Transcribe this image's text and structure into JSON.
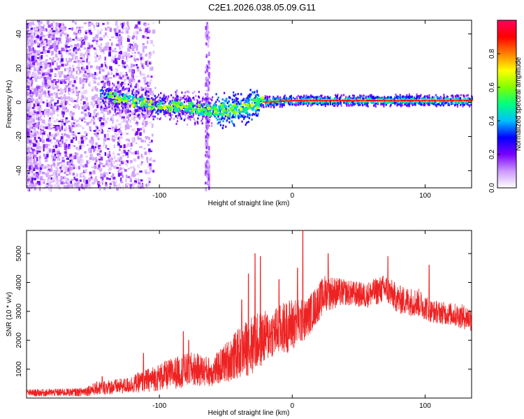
{
  "title": "C2E1.2026.038.05.09.G11",
  "chart_data": [
    {
      "type": "heatmap",
      "name": "spectrogram",
      "xlabel": "Height of straight line (km)",
      "ylabel": "Frequency (Hz)",
      "xlim": [
        -200,
        135
      ],
      "ylim": [
        -50,
        48
      ],
      "x_ticks": [
        -100,
        0,
        100
      ],
      "x_tick_labels": [
        "-100",
        "0",
        "100"
      ],
      "y_ticks": [
        -40,
        -20,
        0,
        20,
        40
      ],
      "y_tick_labels": [
        "-40",
        "-20",
        "0",
        "20",
        "40"
      ],
      "colorbar": {
        "label": "Normalized spectral amplitude",
        "range": [
          0,
          1
        ],
        "ticks": [
          0,
          0.2,
          0.4,
          0.6,
          0.8
        ],
        "tick_labels": [
          "0.0",
          "0.2",
          "0.4",
          "0.6",
          "0.8"
        ],
        "colormap": [
          "#ffffff",
          "#cc99ff",
          "#7a00ff",
          "#0000ff",
          "#00c0ff",
          "#00ff80",
          "#80ff00",
          "#ffff00",
          "#ff8000",
          "#ff0000",
          "#ff0060"
        ]
      },
      "signal_track": [
        {
          "x": -145,
          "freq": 5
        },
        {
          "x": -120,
          "freq": 1
        },
        {
          "x": -100,
          "freq": -2
        },
        {
          "x": -80,
          "freq": -3
        },
        {
          "x": -60,
          "freq": -5
        },
        {
          "x": -40,
          "freq": -4
        },
        {
          "x": -25,
          "freq": 0
        },
        {
          "x": 0,
          "freq": 1
        },
        {
          "x": 50,
          "freq": 1
        },
        {
          "x": 90,
          "freq": 1
        },
        {
          "x": 135,
          "freq": 1
        }
      ]
    },
    {
      "type": "line",
      "name": "snr",
      "xlabel": "Height of straight line (km)",
      "ylabel": "SNR (10 * v/v)",
      "xlim": [
        -200,
        135
      ],
      "ylim": [
        0,
        5800
      ],
      "x_ticks": [
        -100,
        0,
        100
      ],
      "x_tick_labels": [
        "-100",
        "0",
        "100"
      ],
      "y_ticks": [
        1000,
        2000,
        3000,
        4000,
        5000
      ],
      "y_tick_labels": [
        "1000",
        "2000",
        "3000",
        "4000",
        "5000"
      ],
      "color": "#ee2222",
      "envelope": [
        {
          "x": -200,
          "low": 50,
          "high": 300
        },
        {
          "x": -160,
          "low": 60,
          "high": 350
        },
        {
          "x": -145,
          "low": 100,
          "high": 600
        },
        {
          "x": -125,
          "low": 150,
          "high": 700
        },
        {
          "x": -110,
          "low": 200,
          "high": 1000
        },
        {
          "x": -90,
          "low": 300,
          "high": 1400
        },
        {
          "x": -75,
          "low": 400,
          "high": 1600
        },
        {
          "x": -60,
          "low": 400,
          "high": 1400
        },
        {
          "x": -45,
          "low": 600,
          "high": 2200
        },
        {
          "x": -30,
          "low": 800,
          "high": 2900
        },
        {
          "x": -15,
          "low": 1400,
          "high": 3100
        },
        {
          "x": 0,
          "low": 1600,
          "high": 3500
        },
        {
          "x": 10,
          "low": 2000,
          "high": 3400
        },
        {
          "x": 25,
          "low": 3000,
          "high": 4300
        },
        {
          "x": 40,
          "low": 3200,
          "high": 4100
        },
        {
          "x": 55,
          "low": 3100,
          "high": 4000
        },
        {
          "x": 70,
          "low": 3300,
          "high": 4300
        },
        {
          "x": 80,
          "low": 2900,
          "high": 3900
        },
        {
          "x": 95,
          "low": 2800,
          "high": 3800
        },
        {
          "x": 105,
          "low": 2600,
          "high": 3400
        },
        {
          "x": 120,
          "low": 2500,
          "high": 3300
        },
        {
          "x": 135,
          "low": 2300,
          "high": 3200
        }
      ],
      "peaks": [
        {
          "x": -143,
          "y": 750
        },
        {
          "x": -112,
          "y": 1550
        },
        {
          "x": -82,
          "y": 2300
        },
        {
          "x": -78,
          "y": 2000
        },
        {
          "x": -38,
          "y": 3400
        },
        {
          "x": -33,
          "y": 4300
        },
        {
          "x": -28,
          "y": 5000
        },
        {
          "x": -24,
          "y": 4900
        },
        {
          "x": -10,
          "y": 4100
        },
        {
          "x": 4,
          "y": 4500
        },
        {
          "x": 8,
          "y": 5800
        },
        {
          "x": 27,
          "y": 5000
        },
        {
          "x": 72,
          "y": 4900
        },
        {
          "x": 103,
          "y": 4600
        }
      ]
    }
  ]
}
